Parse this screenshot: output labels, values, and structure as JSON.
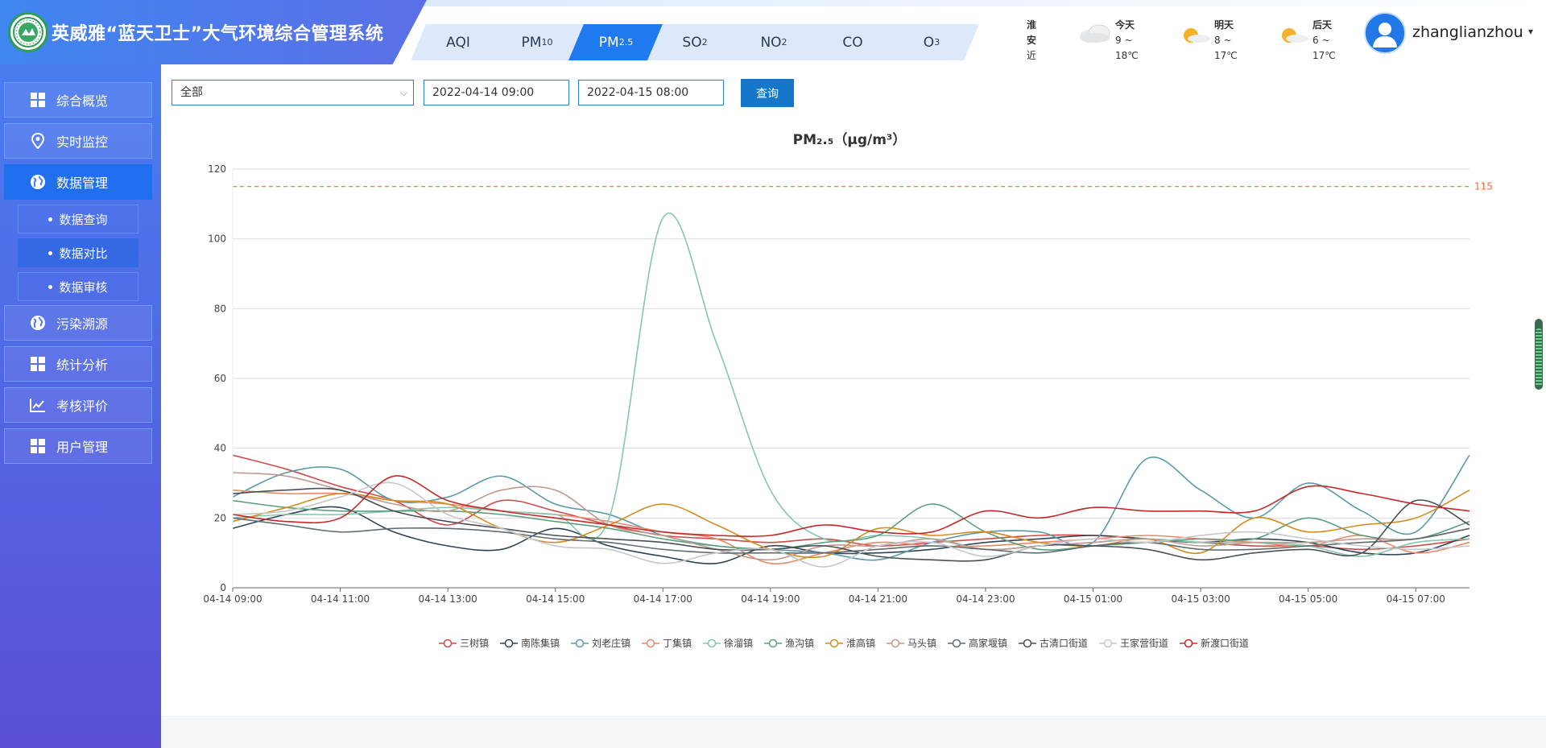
{
  "app": {
    "title": "英威雅“蓝天卫士”大气环境综合管理系统"
  },
  "tabs": [
    {
      "label": "AQI",
      "sub": ""
    },
    {
      "label": "PM",
      "sub": "10"
    },
    {
      "label": "PM",
      "sub": "2.5"
    },
    {
      "label": "SO",
      "sub": "2"
    },
    {
      "label": "NO",
      "sub": "2"
    },
    {
      "label": "CO",
      "sub": ""
    },
    {
      "label": "O",
      "sub": "3"
    }
  ],
  "active_tab": 2,
  "weather": {
    "city": "淮安",
    "caption": "近日天气",
    "days": [
      {
        "label": "今天",
        "temp": "9 ~ 18℃",
        "icon": "cloudy-icon"
      },
      {
        "label": "明天",
        "temp": "8 ~ 17℃",
        "icon": "sunny-icon"
      },
      {
        "label": "后天",
        "temp": "6 ~ 17℃",
        "icon": "sunny-icon"
      }
    ]
  },
  "user": {
    "name": "zhanglianzhou",
    "caret": "▾"
  },
  "sidebar": {
    "items": [
      {
        "label": "综合概览",
        "icon": "grid-icon"
      },
      {
        "label": "实时监控",
        "icon": "location-pin-icon"
      },
      {
        "label": "数据管理",
        "icon": "globe-icon"
      },
      {
        "label": "污染溯源",
        "icon": "globe-icon"
      },
      {
        "label": "统计分析",
        "icon": "grid-icon"
      },
      {
        "label": "考核评价",
        "icon": "trend-chart-icon"
      },
      {
        "label": "用户管理",
        "icon": "grid-icon"
      }
    ],
    "active_item": 2,
    "subitems": [
      {
        "label": "数据查询"
      },
      {
        "label": "数据对比"
      },
      {
        "label": "数据审核"
      }
    ],
    "active_subitem": 1
  },
  "filters": {
    "station": "全部",
    "start": "2022-04-14 09:00",
    "end": "2022-04-15 08:00",
    "query_label": "查询"
  },
  "colors": {
    "accent": "#1f7af0",
    "sidebar_top": "#4a7cf0",
    "sidebar_bottom": "#5b4fd7",
    "threshold": "#ee6f3c"
  },
  "chart_data": {
    "type": "line",
    "title": "PM₂.₅（μg/m³）",
    "xlabel": "",
    "ylabel": "",
    "ylim": [
      0,
      120
    ],
    "yticks": [
      0,
      20,
      40,
      60,
      80,
      100,
      120
    ],
    "grid": true,
    "legend_position": "bottom-center",
    "x": [
      "04-14 09:00",
      "04-14 10:00",
      "04-14 11:00",
      "04-14 12:00",
      "04-14 13:00",
      "04-14 14:00",
      "04-14 15:00",
      "04-14 16:00",
      "04-14 17:00",
      "04-14 18:00",
      "04-14 19:00",
      "04-14 20:00",
      "04-14 21:00",
      "04-14 22:00",
      "04-14 23:00",
      "04-15 00:00",
      "04-15 01:00",
      "04-15 02:00",
      "04-15 03:00",
      "04-15 04:00",
      "04-15 05:00",
      "04-15 06:00",
      "04-15 07:00",
      "04-15 08:00"
    ],
    "xtick_labels": [
      "04-14 09:00",
      "04-14 11:00",
      "04-14 13:00",
      "04-14 15:00",
      "04-14 17:00",
      "04-14 19:00",
      "04-14 21:00",
      "04-14 23:00",
      "04-15 01:00",
      "04-15 03:00",
      "04-15 05:00",
      "04-15 07:00"
    ],
    "threshold": {
      "value": 115,
      "label": "115"
    },
    "series": [
      {
        "name": "三树镇",
        "color": "#d14a4a",
        "values": [
          38,
          34,
          29,
          25,
          18,
          25,
          22,
          18,
          15,
          14,
          13,
          14,
          12,
          13,
          14,
          15,
          15,
          14,
          13,
          12,
          12,
          11,
          12,
          14
        ]
      },
      {
        "name": "南陈集镇",
        "color": "#2f4557",
        "values": [
          17,
          21,
          23,
          16,
          12,
          11,
          17,
          12,
          9,
          7,
          12,
          10,
          10,
          11,
          13,
          14,
          15,
          14,
          13,
          14,
          13,
          10,
          10,
          15
        ]
      },
      {
        "name": "刘老庄镇",
        "color": "#5b9aa8",
        "values": [
          26,
          33,
          34,
          25,
          26,
          32,
          24,
          21,
          15,
          12,
          11,
          10,
          8,
          13,
          16,
          16,
          13,
          37,
          28,
          20,
          30,
          22,
          16,
          38
        ]
      },
      {
        "name": "丁集镇",
        "color": "#e88a6a",
        "values": [
          28,
          27,
          27,
          25,
          24,
          22,
          21,
          19,
          16,
          14,
          7,
          10,
          13,
          12,
          12,
          13,
          14,
          15,
          14,
          13,
          12,
          15,
          10,
          13
        ]
      },
      {
        "name": "徐溜镇",
        "color": "#86c5b0",
        "values": [
          20,
          21,
          21,
          22,
          23,
          22,
          21,
          20,
          106,
          70,
          28,
          14,
          15,
          14,
          11,
          12,
          13,
          14,
          13,
          13,
          12,
          9,
          13,
          14
        ]
      },
      {
        "name": "渔沟镇",
        "color": "#5d9f7a",
        "values": [
          25,
          23,
          22,
          22,
          22,
          21,
          19,
          17,
          14,
          12,
          11,
          13,
          15,
          24,
          16,
          11,
          12,
          13,
          14,
          14,
          20,
          15,
          14,
          19
        ]
      },
      {
        "name": "淮高镇",
        "color": "#d48c21",
        "values": [
          19,
          23,
          27,
          25,
          24,
          17,
          13,
          18,
          24,
          18,
          11,
          9,
          17,
          15,
          16,
          13,
          12,
          14,
          10,
          20,
          16,
          18,
          20,
          28
        ]
      },
      {
        "name": "马头镇",
        "color": "#c09a8c",
        "values": [
          33,
          32,
          28,
          24,
          22,
          28,
          28,
          18,
          15,
          11,
          8,
          12,
          12,
          14,
          11,
          12,
          13,
          14,
          12,
          13,
          13,
          14,
          14,
          17
        ]
      },
      {
        "name": "高家堰镇",
        "color": "#626c72",
        "values": [
          20,
          18,
          16,
          17,
          17,
          16,
          14,
          13,
          11,
          10,
          10,
          10,
          11,
          12,
          11,
          10,
          12,
          13,
          11,
          11,
          12,
          13,
          14,
          17
        ]
      },
      {
        "name": "古清口街道",
        "color": "#4a5055",
        "values": [
          27,
          28,
          28,
          22,
          19,
          17,
          15,
          14,
          13,
          11,
          11,
          12,
          9,
          8,
          8,
          12,
          12,
          11,
          8,
          10,
          11,
          10,
          25,
          18
        ]
      },
      {
        "name": "王家营街道",
        "color": "#c4c8cc",
        "values": [
          21,
          22,
          26,
          30,
          21,
          17,
          12,
          11,
          7,
          10,
          11,
          6,
          12,
          13,
          9,
          12,
          14,
          13,
          15,
          16,
          14,
          12,
          11,
          12
        ]
      },
      {
        "name": "新渡口街道",
        "color": "#c7282a",
        "values": [
          21,
          19,
          20,
          32,
          25,
          22,
          20,
          18,
          16,
          15,
          15,
          18,
          16,
          16,
          22,
          20,
          23,
          22,
          22,
          22,
          29,
          27,
          24,
          22
        ]
      }
    ]
  }
}
